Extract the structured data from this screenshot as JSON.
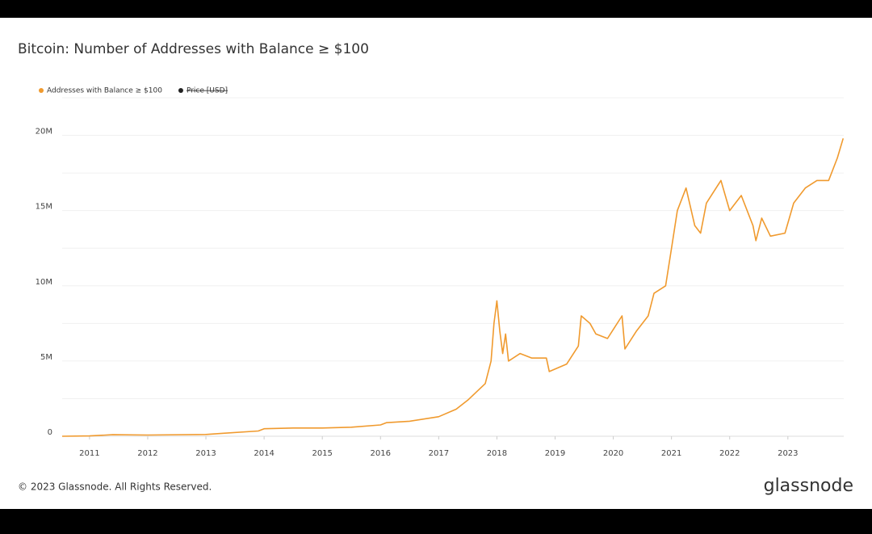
{
  "chart_data": {
    "type": "line",
    "title": "Bitcoin: Number of Addresses with Balance ≥ $100",
    "series": [
      {
        "name": "Addresses with Balance ≥ $100",
        "color": "#f09a2e",
        "x": [
          2010.53,
          2011.0,
          2011.4,
          2012.0,
          2013.0,
          2013.3,
          2013.9,
          2014.0,
          2014.5,
          2015.0,
          2015.5,
          2016.0,
          2016.1,
          2016.5,
          2017.0,
          2017.3,
          2017.5,
          2017.8,
          2017.9,
          2017.95,
          2018.0,
          2018.05,
          2018.1,
          2018.15,
          2018.2,
          2018.4,
          2018.6,
          2018.85,
          2018.9,
          2019.2,
          2019.4,
          2019.45,
          2019.6,
          2019.7,
          2019.9,
          2020.15,
          2020.2,
          2020.4,
          2020.6,
          2020.7,
          2020.9,
          2021.0,
          2021.1,
          2021.25,
          2021.4,
          2021.5,
          2021.6,
          2021.85,
          2022.0,
          2022.2,
          2022.4,
          2022.45,
          2022.55,
          2022.7,
          2022.95,
          2023.1,
          2023.3,
          2023.5,
          2023.7,
          2023.85,
          2023.95
        ],
        "values": [
          0,
          20000,
          100000,
          80000,
          120000,
          200000,
          350000,
          500000,
          550000,
          550000,
          600000,
          750000,
          900000,
          1000000,
          1300000,
          1800000,
          2400000,
          3500000,
          5000000,
          7500000,
          9000000,
          7000000,
          5500000,
          6800000,
          5000000,
          5500000,
          5200000,
          5200000,
          4300000,
          4800000,
          6000000,
          8000000,
          7500000,
          6800000,
          6500000,
          8000000,
          5800000,
          7000000,
          8000000,
          9500000,
          10000000,
          12500000,
          15000000,
          16500000,
          14000000,
          13500000,
          15500000,
          17000000,
          15000000,
          16000000,
          14000000,
          13000000,
          14500000,
          13300000,
          13500000,
          15500000,
          16500000,
          17000000,
          17000000,
          18500000,
          19800000
        ]
      },
      {
        "name": "Price [USD]",
        "color": "#222222",
        "hidden": true
      }
    ],
    "xlim": [
      2010.53,
      2023.96
    ],
    "xticks": [
      2011,
      2012,
      2013,
      2014,
      2015,
      2016,
      2017,
      2018,
      2019,
      2020,
      2021,
      2022,
      2023
    ],
    "ylim": [
      0,
      22500000
    ],
    "yticks": [
      0,
      {
        "value": 5000000,
        "label": "5M"
      },
      {
        "value": 10000000,
        "label": "10M"
      },
      {
        "value": 15000000,
        "label": "15M"
      },
      {
        "value": 20000000,
        "label": "20M"
      }
    ],
    "y_minor_ticks": [
      2500000,
      7500000,
      12500000,
      17500000
    ],
    "grid": true,
    "legend": "top-left",
    "footer": "© 2023 Glassnode. All Rights Reserved.",
    "brand": "glassnode"
  }
}
